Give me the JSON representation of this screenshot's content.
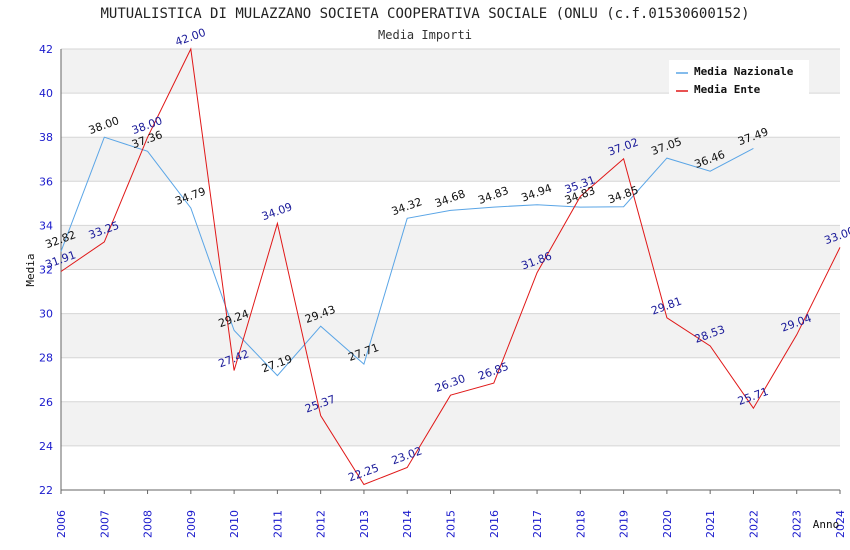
{
  "chart_data": {
    "type": "line",
    "title": "MUTUALISTICA DI MULAZZANO SOCIETA COOPERATIVA SOCIALE (ONLU (c.f.01530600152)",
    "subtitle": "Media Importi",
    "xlabel": "Anno",
    "ylabel": "Media",
    "ylim": [
      22,
      42
    ],
    "yticks": [
      22,
      24,
      26,
      28,
      30,
      32,
      34,
      36,
      38,
      40,
      42
    ],
    "x": [
      "2006",
      "2007",
      "2008",
      "2009",
      "2010",
      "2011",
      "2012",
      "2013",
      "2014",
      "2015",
      "2016",
      "2017",
      "2018",
      "2019",
      "2020",
      "2021",
      "2022",
      "2023",
      "2024"
    ],
    "grid": true,
    "legend_position": "top-right",
    "series": [
      {
        "name": "Media Nazionale",
        "color": "#5aa5e6",
        "values": [
          32.82,
          38.0,
          37.36,
          34.79,
          29.24,
          27.19,
          29.43,
          27.71,
          34.32,
          34.68,
          34.83,
          34.94,
          34.83,
          34.85,
          37.05,
          36.46,
          37.49,
          null,
          null
        ],
        "labels": [
          "32.82",
          "38.00",
          "37.36",
          "34.79",
          "29.24",
          "27.19",
          "29.43",
          "27.71",
          "34.32",
          "34.68",
          "34.83",
          "34.94",
          "34.83",
          "34.85",
          "37.05",
          "36.46",
          "37.49",
          "",
          ""
        ]
      },
      {
        "name": "Media Ente",
        "color": "#e01818",
        "values": [
          31.91,
          33.25,
          38.0,
          42.0,
          27.42,
          34.09,
          25.37,
          22.25,
          23.02,
          26.3,
          26.85,
          31.86,
          35.31,
          37.02,
          29.81,
          28.53,
          25.71,
          29.04,
          33.0
        ],
        "labels": [
          "31.91",
          "33.25",
          "38.00",
          "42.00",
          "27.42",
          "34.09",
          "25.37",
          "22.25",
          "23.02",
          "26.30",
          "26.85",
          "31.86",
          "35.31",
          "37.02",
          "29.81",
          "28.53",
          "25.71",
          "29.04",
          "33.00"
        ]
      }
    ]
  }
}
